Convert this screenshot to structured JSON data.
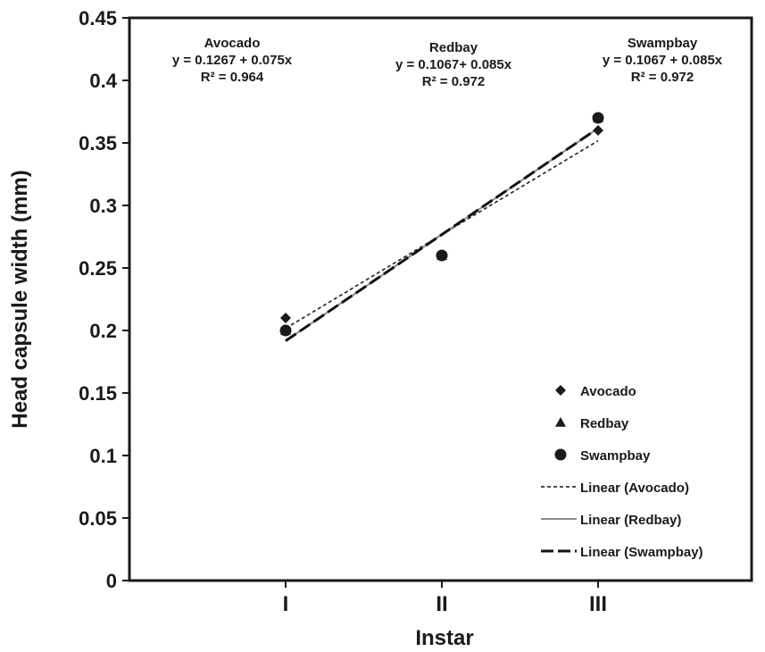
{
  "chart_data": {
    "type": "scatter",
    "title": "",
    "xlabel": "Instar",
    "ylabel": "Head capsule width (mm)",
    "categories": [
      "I",
      "II",
      "III"
    ],
    "ylim": [
      0,
      0.45
    ],
    "yticks": [
      0,
      0.05,
      0.1,
      0.15,
      0.2,
      0.25,
      0.3,
      0.35,
      0.4,
      0.45
    ],
    "ytick_labels": [
      "0",
      "0.05",
      "0.1",
      "0.15",
      "0.2",
      "0.25",
      "0.3",
      "0.35",
      "0.4",
      "0.45"
    ],
    "grid": false,
    "legend_position": "bottom-right",
    "series": [
      {
        "name": "Avocado",
        "marker": "diamond",
        "x": [
          1,
          2,
          3
        ],
        "values": [
          0.21,
          0.26,
          0.36
        ]
      },
      {
        "name": "Redbay",
        "marker": "triangle",
        "x": [
          1,
          2,
          3
        ],
        "values": [
          0.2,
          0.26,
          0.37
        ]
      },
      {
        "name": "Swampbay",
        "marker": "circle",
        "x": [
          1,
          2,
          3
        ],
        "values": [
          0.2,
          0.26,
          0.37
        ]
      }
    ],
    "trendlines": [
      {
        "name": "Linear (Avocado)",
        "style": "short-dash",
        "color": "#222222",
        "intercept": 0.1267,
        "slope": 0.075
      },
      {
        "name": "Linear (Redbay)",
        "style": "solid",
        "color": "#8a8a8a",
        "intercept": 0.1067,
        "slope": 0.085
      },
      {
        "name": "Linear (Swampbay)",
        "style": "long-dash",
        "color": "#111111",
        "intercept": 0.1067,
        "slope": 0.085
      }
    ],
    "annotations": [
      {
        "title": "Avocado",
        "equation": "y = 0.1267 + 0.075x",
        "r2": "R² = 0.964"
      },
      {
        "title": "Redbay",
        "equation": "y = 0.1067+ 0.085x",
        "r2": "R² = 0.972"
      },
      {
        "title": "Swampbay",
        "equation": "y = 0.1067 + 0.085x",
        "r2": "R² = 0.972"
      }
    ],
    "legend": [
      {
        "label": "Avocado",
        "kind": "diamond"
      },
      {
        "label": "Redbay",
        "kind": "triangle"
      },
      {
        "label": "Swampbay",
        "kind": "circle"
      },
      {
        "label": "Linear (Avocado)",
        "kind": "short-dash"
      },
      {
        "label": "Linear (Redbay)",
        "kind": "solid"
      },
      {
        "label": "Linear (Swampbay)",
        "kind": "long-dash"
      }
    ]
  }
}
